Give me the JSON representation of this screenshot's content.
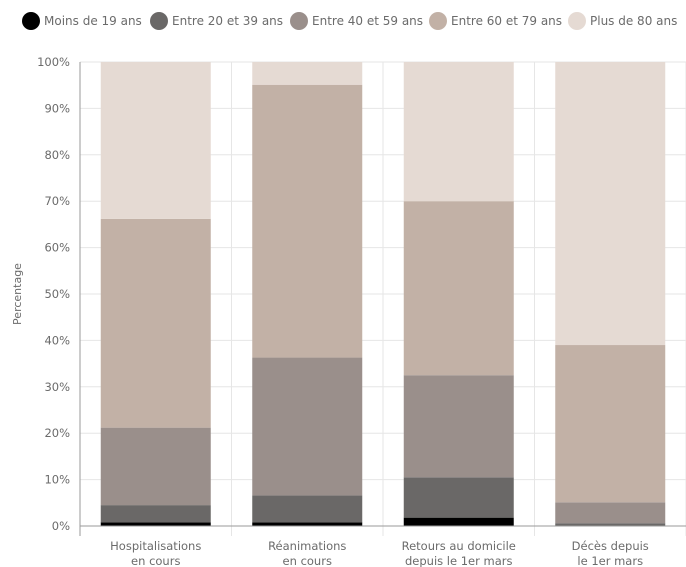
{
  "legend": [
    {
      "label": "Moins de 19 ans",
      "color": "#000000"
    },
    {
      "label": "Entre 20 et 39 ans",
      "color": "#6a6867"
    },
    {
      "label": "Entre 40 et 59 ans",
      "color": "#9a8f8b"
    },
    {
      "label": "Entre 60 et 79 ans",
      "color": "#c2b1a6"
    },
    {
      "label": "Plus de 80 ans",
      "color": "#e5dad3"
    }
  ],
  "chart_data": {
    "type": "bar",
    "stacked": true,
    "categories": [
      [
        "Hospitalisations",
        "en cours"
      ],
      [
        "Réanimations",
        "en cours"
      ],
      [
        "Retours au domicile",
        "depuis le 1er mars"
      ],
      [
        "Décès depuis",
        "le 1er mars"
      ]
    ],
    "series": [
      {
        "name": "Moins de 19 ans",
        "values": [
          0.8,
          0.8,
          1.8,
          0.1
        ]
      },
      {
        "name": "Entre 20 et 39 ans",
        "values": [
          3.7,
          5.8,
          8.7,
          0.5
        ]
      },
      {
        "name": "Entre 40 et 59 ans",
        "values": [
          16.7,
          29.7,
          22.0,
          4.5
        ]
      },
      {
        "name": "Entre 60 et 79 ans",
        "values": [
          45.0,
          58.8,
          37.5,
          33.9
        ]
      },
      {
        "name": "Plus de 80 ans",
        "values": [
          33.8,
          4.9,
          30.0,
          61.0
        ]
      }
    ],
    "ylabel": "Percentage",
    "ylim": [
      0,
      100
    ],
    "yticks": [
      "0%",
      "10%",
      "20%",
      "30%",
      "40%",
      "50%",
      "60%",
      "70%",
      "80%",
      "90%",
      "100%"
    ],
    "grid": true
  }
}
